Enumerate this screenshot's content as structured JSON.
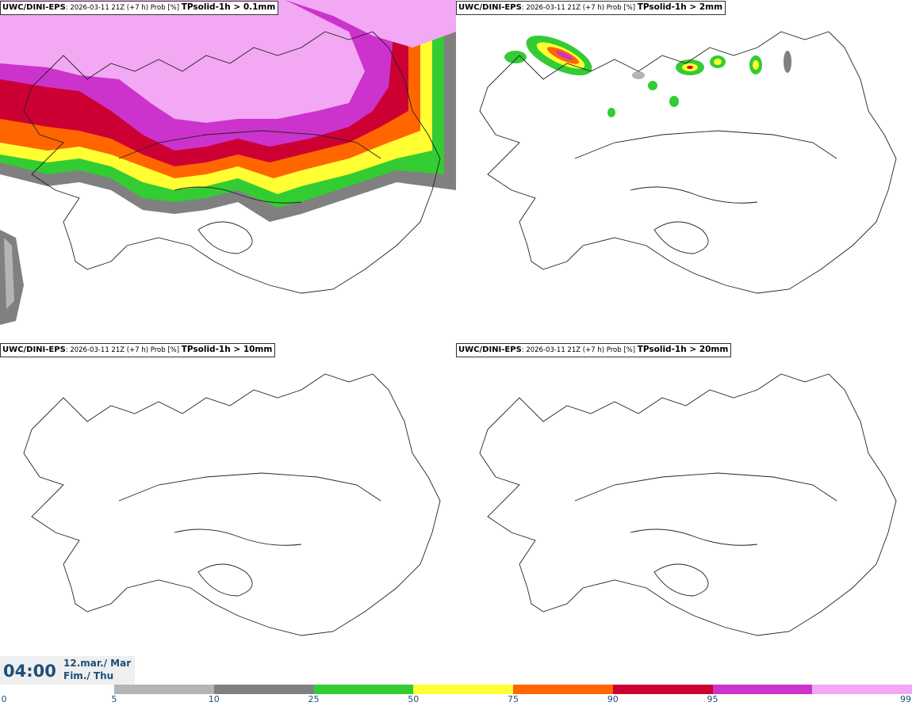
{
  "panels": [
    {
      "model": "UWC/DINI-EPS",
      "meta": ": 2026-03-11 21Z (+7 h) Prob [%] ",
      "field": "TPsolid-1h > 0.1mm"
    },
    {
      "model": "UWC/DINI-EPS",
      "meta": ": 2026-03-11 21Z (+7 h) Prob [%] ",
      "field": "TPsolid-1h > 2mm"
    },
    {
      "model": "UWC/DINI-EPS",
      "meta": ": 2026-03-11 21Z (+7 h) Prob [%] ",
      "field": "TPsolid-1h > 10mm"
    },
    {
      "model": "UWC/DINI-EPS",
      "meta": ": 2026-03-11 21Z (+7 h) Prob [%] ",
      "field": "TPsolid-1h > 20mm"
    }
  ],
  "valid_time": {
    "time": "04:00",
    "date_line1": "12.mar./ Mar",
    "date_line2": "Fim./ Thu"
  },
  "colorbar": {
    "ticks": [
      "0",
      "5",
      "10",
      "25",
      "50",
      "75",
      "90",
      "95",
      "99"
    ],
    "colors": [
      "#b4b4b4",
      "#808080",
      "#33cc33",
      "#ffff33",
      "#ff6600",
      "#cc0033",
      "#cc33cc",
      "#f2a8f2"
    ]
  }
}
